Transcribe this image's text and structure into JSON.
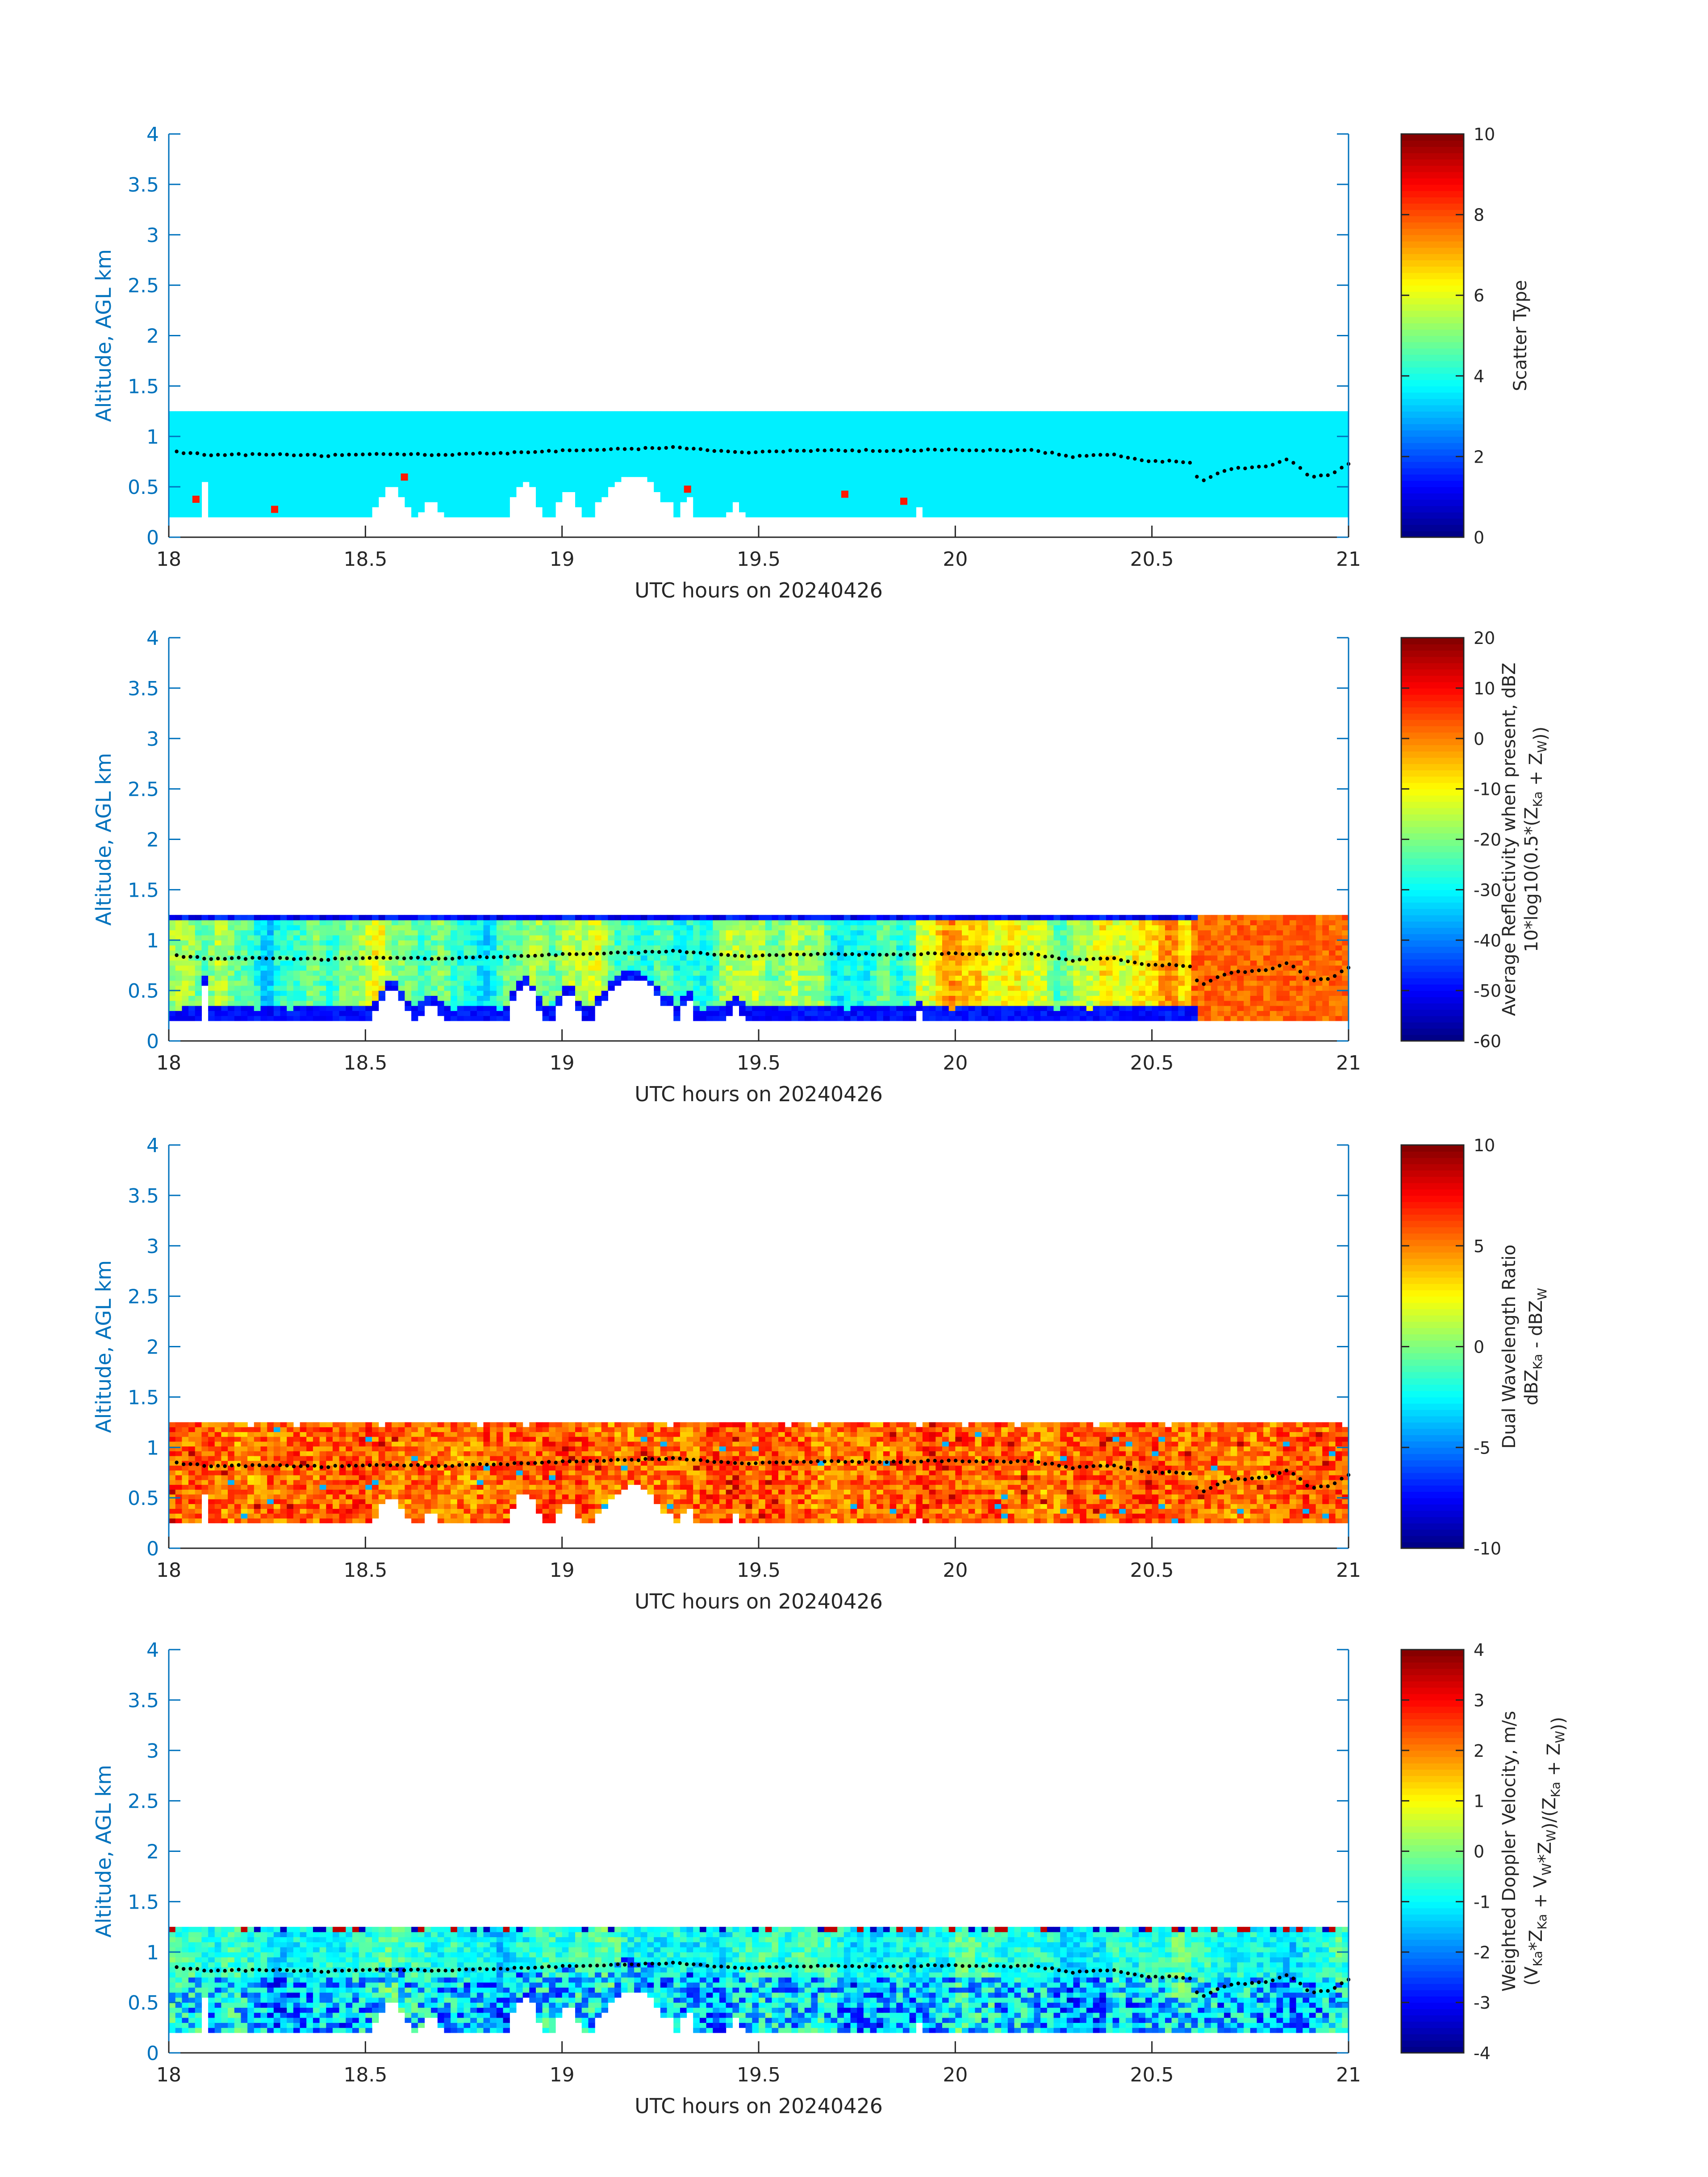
{
  "figure": {
    "background": "#ffffff",
    "axis_color": "#0072bd",
    "text_color": "#262626"
  },
  "chart_data": [
    {
      "type": "heatmap",
      "id": "scatter-type",
      "xlabel": "UTC hours on 20240426",
      "ylabel": "Altitude, AGL km",
      "xlim": [
        18,
        21
      ],
      "ylim": [
        0,
        4
      ],
      "xticks": [
        18,
        18.5,
        19,
        19.5,
        20,
        20.5,
        21
      ],
      "yticks": [
        0,
        0.5,
        1,
        1.5,
        2,
        2.5,
        3,
        3.5,
        4
      ],
      "colorbar": {
        "label_lines": [
          "Scatter Type"
        ],
        "clim": [
          0,
          10
        ],
        "ticks": [
          0,
          2,
          4,
          6,
          8,
          10
        ],
        "colormap": "jet"
      },
      "field_mode": "constant",
      "field_value": 3.6,
      "cloud_base_km": 0.2,
      "cloud_top_km": 1.25,
      "outliers": [
        {
          "x": 18.06,
          "y": 0.35,
          "value": 8.5
        },
        {
          "x": 18.26,
          "y": 0.25,
          "value": 8.5
        },
        {
          "x": 18.59,
          "y": 0.57,
          "value": 8.5
        },
        {
          "x": 19.31,
          "y": 0.45,
          "value": 8.5
        },
        {
          "x": 19.71,
          "y": 0.4,
          "value": 8.5
        },
        {
          "x": 19.86,
          "y": 0.33,
          "value": 8.5
        }
      ]
    },
    {
      "type": "heatmap",
      "id": "reflectivity",
      "xlabel": "UTC hours on 20240426",
      "ylabel": "Altitude, AGL km",
      "xlim": [
        18,
        21
      ],
      "ylim": [
        0,
        4
      ],
      "xticks": [
        18,
        18.5,
        19,
        19.5,
        20,
        20.5,
        21
      ],
      "yticks": [
        0,
        0.5,
        1,
        1.5,
        2,
        2.5,
        3,
        3.5,
        4
      ],
      "colorbar": {
        "label_lines": [
          "Average Reflectivity when present, dBZ",
          "10*log10(0.5*(Z_Ka + Z_W))"
        ],
        "clim": [
          -60,
          20
        ],
        "ticks": [
          -60,
          -50,
          -40,
          -30,
          -20,
          -10,
          0,
          10,
          20
        ],
        "colormap": "jet"
      },
      "field_mode": "reflectivity",
      "cloud_base_km": 0.2,
      "cloud_top_km": 1.25
    },
    {
      "type": "heatmap",
      "id": "dwr",
      "xlabel": "UTC hours on 20240426",
      "ylabel": "Altitude, AGL km",
      "xlim": [
        18,
        21
      ],
      "ylim": [
        0,
        4
      ],
      "xticks": [
        18,
        18.5,
        19,
        19.5,
        20,
        20.5,
        21
      ],
      "yticks": [
        0,
        0.5,
        1,
        1.5,
        2,
        2.5,
        3,
        3.5,
        4
      ],
      "colorbar": {
        "label_lines": [
          "Dual Wavelength Ratio",
          "dBZ_Ka - dBZ_W"
        ],
        "clim": [
          -10,
          10
        ],
        "ticks": [
          -10,
          -5,
          0,
          5,
          10
        ],
        "colormap": "jet"
      },
      "field_mode": "dwr",
      "cloud_base_km": 0.25,
      "cloud_top_km": 1.25
    },
    {
      "type": "heatmap",
      "id": "doppler",
      "xlabel": "UTC hours on 20240426",
      "ylabel": "Altitude, AGL km",
      "xlim": [
        18,
        21
      ],
      "ylim": [
        0,
        4
      ],
      "xticks": [
        18,
        18.5,
        19,
        19.5,
        20,
        20.5,
        21
      ],
      "yticks": [
        0,
        0.5,
        1,
        1.5,
        2,
        2.5,
        3,
        3.5,
        4
      ],
      "colorbar": {
        "label_lines": [
          "Weighted Doppler Velocity, m/s",
          "(V_Ka*Z_Ka + V_W*Z_W)/(Z_Ka + Z_W))"
        ],
        "clim": [
          -4,
          4
        ],
        "ticks": [
          -4,
          -3,
          -2,
          -1,
          0,
          1,
          2,
          3,
          4
        ],
        "colormap": "jet"
      },
      "field_mode": "doppler",
      "cloud_base_km": 0.2,
      "cloud_top_km": 1.25
    }
  ],
  "cloud_base_series": {
    "x": [
      18.0,
      18.1,
      18.2,
      18.3,
      18.4,
      18.5,
      18.6,
      18.7,
      18.8,
      18.9,
      19.0,
      19.1,
      19.2,
      19.3,
      19.4,
      19.5,
      19.6,
      19.7,
      19.8,
      19.9,
      20.0,
      20.1,
      20.2,
      20.3,
      20.4,
      20.5,
      20.55,
      20.6,
      20.62,
      20.7,
      20.8,
      20.85,
      20.9,
      20.95,
      21.0
    ],
    "y": [
      0.85,
      0.82,
      0.82,
      0.82,
      0.81,
      0.82,
      0.82,
      0.82,
      0.83,
      0.84,
      0.86,
      0.87,
      0.88,
      0.89,
      0.85,
      0.84,
      0.86,
      0.86,
      0.86,
      0.86,
      0.87,
      0.86,
      0.86,
      0.8,
      0.82,
      0.75,
      0.76,
      0.73,
      0.55,
      0.68,
      0.7,
      0.78,
      0.6,
      0.62,
      0.72
    ]
  }
}
